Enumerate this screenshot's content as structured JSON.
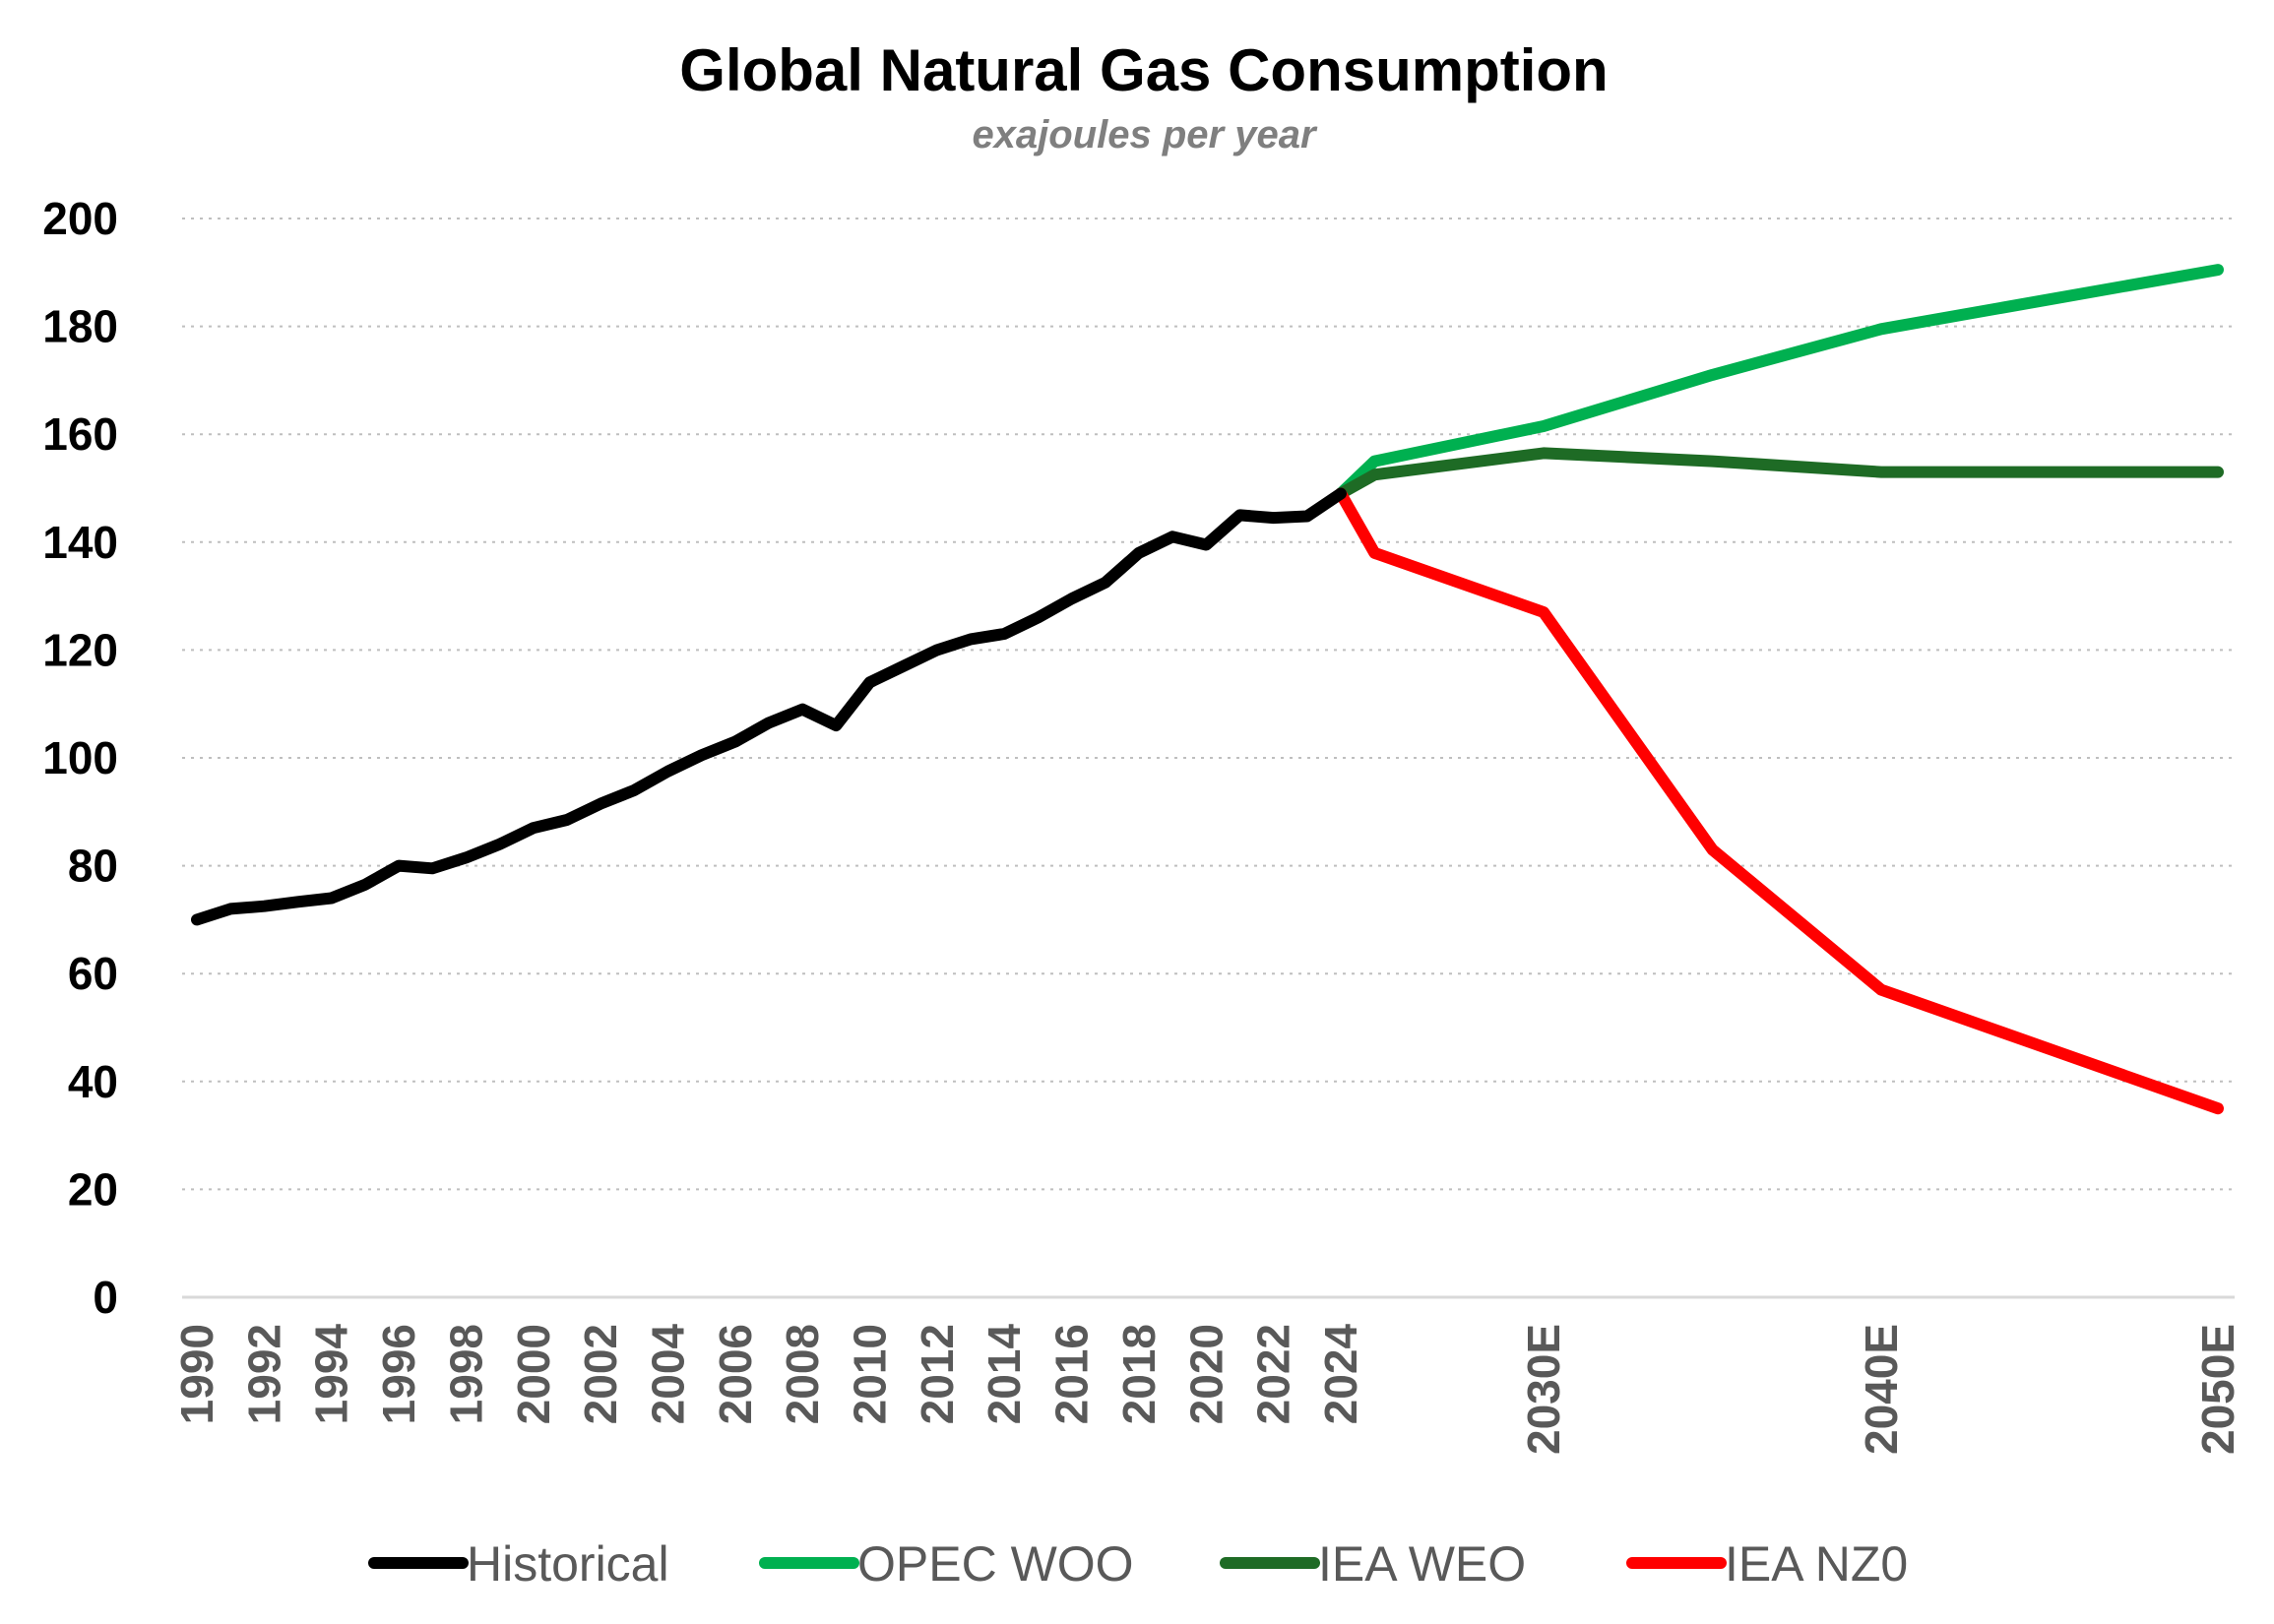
{
  "chart_data": {
    "type": "line",
    "title": "Global Natural Gas Consumption",
    "subtitle": "exajoules per year",
    "ylim": [
      0,
      200
    ],
    "yticks": [
      0,
      20,
      40,
      60,
      80,
      100,
      120,
      140,
      160,
      180,
      200
    ],
    "x_labels": [
      "1990",
      "1992",
      "1994",
      "1996",
      "1998",
      "2000",
      "2002",
      "2004",
      "2006",
      "2008",
      "2010",
      "2012",
      "2014",
      "2016",
      "2018",
      "2020",
      "2022",
      "2024",
      "2030E",
      "2040E",
      "2050E"
    ],
    "grid": true,
    "legend_position": "bottom",
    "series": [
      {
        "name": "Historical",
        "color": "#000000",
        "x": [
          1990,
          1991,
          1992,
          1993,
          1994,
          1995,
          1996,
          1997,
          1998,
          1999,
          2000,
          2001,
          2002,
          2003,
          2004,
          2005,
          2006,
          2007,
          2008,
          2009,
          2010,
          2011,
          2012,
          2013,
          2014,
          2015,
          2016,
          2017,
          2018,
          2019,
          2020,
          2021,
          2022,
          2023,
          2024
        ],
        "values": [
          70,
          72,
          72.5,
          73.3,
          74,
          76.5,
          80,
          79.5,
          81.5,
          84,
          87,
          88.5,
          91.5,
          94,
          97.5,
          100.5,
          103,
          106.5,
          109,
          106,
          114,
          117,
          120,
          122,
          123,
          126,
          129.5,
          132.5,
          138,
          141,
          139.5,
          145,
          144.5,
          144.8,
          149
        ]
      },
      {
        "name": "OPEC WOO",
        "color": "#00b050",
        "x": [
          2024,
          2025,
          2030,
          2035,
          2040,
          2045,
          2050
        ],
        "values": [
          149,
          155,
          161.5,
          171,
          179.5,
          185,
          190.5
        ]
      },
      {
        "name": "IEA WEO",
        "color": "#1e6b25",
        "x": [
          2024,
          2025,
          2030,
          2035,
          2040,
          2045,
          2050
        ],
        "values": [
          149,
          152.5,
          156.5,
          155,
          153,
          153,
          153
        ]
      },
      {
        "name": "IEA NZ0",
        "color": "#ff0000",
        "x": [
          2024,
          2025,
          2030,
          2035,
          2040,
          2045,
          2050
        ],
        "values": [
          149,
          138,
          127,
          83,
          57,
          46,
          35
        ]
      }
    ]
  }
}
